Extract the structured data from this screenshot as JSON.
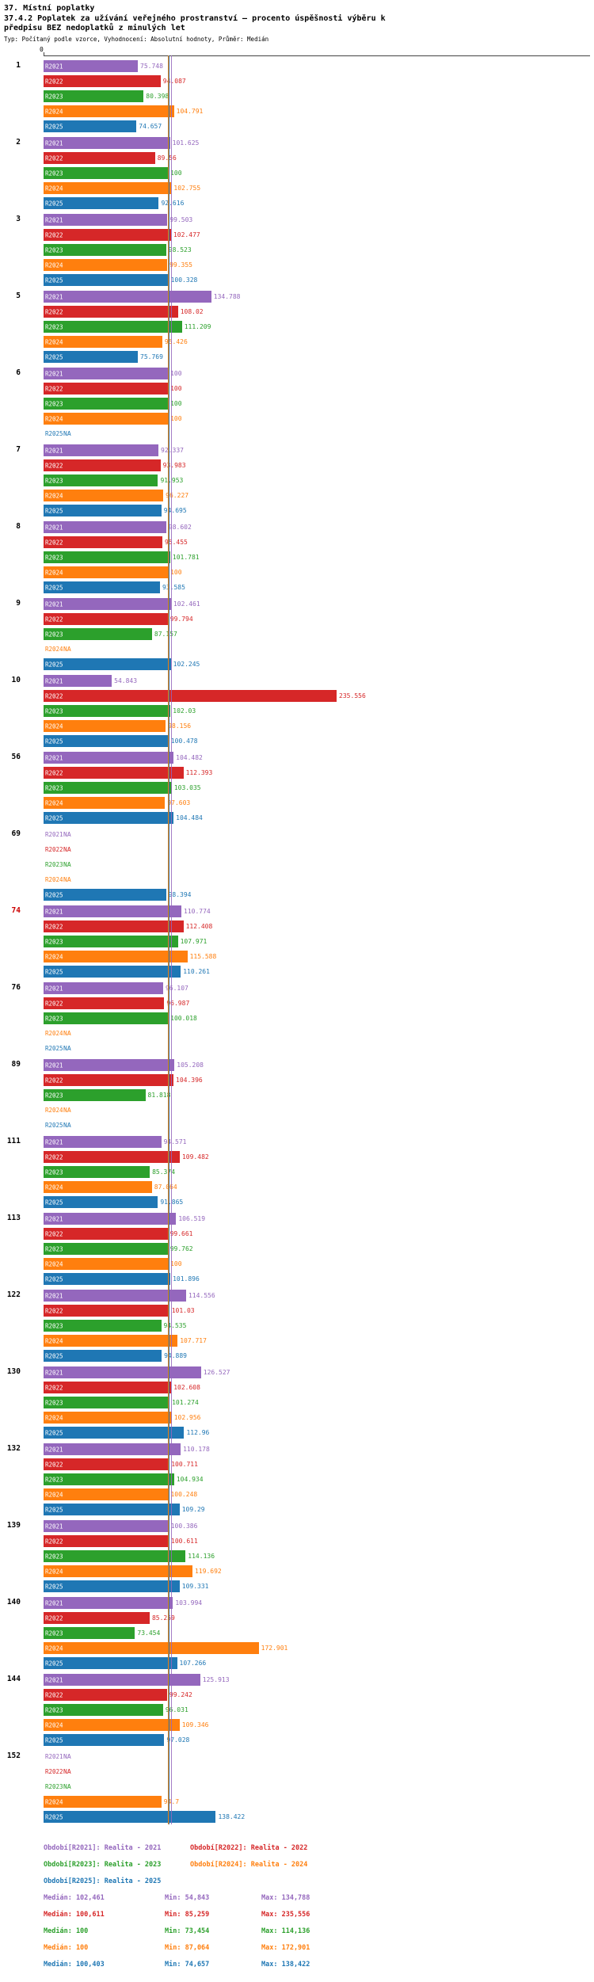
{
  "colors": {
    "R2021": "#9467bd",
    "R2022": "#d62728",
    "R2023": "#2ca02c",
    "R2024": "#ff7f0e",
    "R2025": "#1f77b4"
  },
  "chart_data": {
    "type": "bar",
    "orientation": "horizontal",
    "title": "37. Místní poplatky",
    "subtitle": "37.4.2 Poplatek za užívání veřejného prostranství – procento úspěšnosti výběru k předpisu BEZ nedoplatků z minulých let",
    "meta": "Typ: Počítaný podle vzorce, Vyhodnocení: Absolutní hodnoty, Průměr: Medián",
    "axis_zero": "0",
    "x_range": [
      0,
      240
    ],
    "na_text": "NA",
    "series_names": [
      "R2021",
      "R2022",
      "R2023",
      "R2024",
      "R2025"
    ],
    "groups": [
      {
        "label": "1",
        "values": [
          75.748,
          94.087,
          80.398,
          104.791,
          74.657
        ]
      },
      {
        "label": "2",
        "values": [
          101.625,
          89.56,
          100,
          102.755,
          92.616
        ]
      },
      {
        "label": "3",
        "values": [
          99.503,
          102.477,
          98.523,
          99.355,
          100.328
        ]
      },
      {
        "label": "5",
        "values": [
          134.788,
          108.02,
          111.209,
          95.426,
          75.769
        ]
      },
      {
        "label": "6",
        "values": [
          100,
          100,
          100,
          100,
          null
        ]
      },
      {
        "label": "7",
        "values": [
          92.337,
          93.983,
          91.953,
          96.227,
          94.695
        ]
      },
      {
        "label": "8",
        "values": [
          98.602,
          95.455,
          101.781,
          100,
          93.585
        ]
      },
      {
        "label": "9",
        "values": [
          102.461,
          99.794,
          87.157,
          null,
          102.245
        ]
      },
      {
        "label": "10",
        "values": [
          54.843,
          235.556,
          102.03,
          98.156,
          100.478
        ]
      },
      {
        "label": "56",
        "values": [
          104.482,
          112.393,
          103.035,
          97.603,
          104.484
        ]
      },
      {
        "label": "69",
        "values": [
          null,
          null,
          null,
          null,
          98.394
        ]
      },
      {
        "label": "74",
        "values": [
          110.774,
          112.408,
          107.971,
          115.588,
          110.261
        ],
        "highlight": true
      },
      {
        "label": "76",
        "values": [
          96.107,
          96.987,
          100.018,
          null,
          null
        ]
      },
      {
        "label": "89",
        "values": [
          105.208,
          104.396,
          81.818,
          null,
          null
        ]
      },
      {
        "label": "111",
        "values": [
          94.571,
          109.482,
          85.374,
          87.064,
          91.865
        ]
      },
      {
        "label": "113",
        "values": [
          106.519,
          99.661,
          99.762,
          100,
          101.896
        ]
      },
      {
        "label": "122",
        "values": [
          114.556,
          101.03,
          94.535,
          107.717,
          94.889
        ]
      },
      {
        "label": "130",
        "values": [
          126.527,
          102.608,
          101.274,
          102.956,
          112.96
        ]
      },
      {
        "label": "132",
        "values": [
          110.178,
          100.711,
          104.934,
          100.248,
          109.29
        ]
      },
      {
        "label": "139",
        "values": [
          100.386,
          100.611,
          114.136,
          119.692,
          109.331
        ]
      },
      {
        "label": "140",
        "values": [
          103.994,
          85.259,
          73.454,
          172.901,
          107.266
        ]
      },
      {
        "label": "144",
        "values": [
          125.913,
          99.242,
          96.031,
          109.346,
          97.028
        ]
      },
      {
        "label": "152",
        "values": [
          null,
          null,
          null,
          94.7,
          138.422
        ]
      }
    ],
    "medians": [
      102.461,
      100.611,
      100,
      100,
      100.403
    ],
    "legend": [
      {
        "series": "R2021",
        "label": "Období[R2021]: Realita - 2021"
      },
      {
        "series": "R2022",
        "label": "Období[R2022]: Realita - 2022"
      },
      {
        "series": "R2023",
        "label": "Období[R2023]: Realita - 2023"
      },
      {
        "series": "R2024",
        "label": "Období[R2024]: Realita - 2024"
      },
      {
        "series": "R2025",
        "label": "Období[R2025]: Realita - 2025"
      }
    ],
    "stats": [
      {
        "series": "R2021",
        "median": "Medián: 102,461",
        "min": "Min: 54,843",
        "max": "Max: 134,788"
      },
      {
        "series": "R2022",
        "median": "Medián: 100,611",
        "min": "Min: 85,259",
        "max": "Max: 235,556"
      },
      {
        "series": "R2023",
        "median": "Medián: 100",
        "min": "Min: 73,454",
        "max": "Max: 114,136"
      },
      {
        "series": "R2024",
        "median": "Medián: 100",
        "min": "Min: 87,064",
        "max": "Max: 172,901"
      },
      {
        "series": "R2025",
        "median": "Medián: 100,403",
        "min": "Min: 74,657",
        "max": "Max: 138,422"
      }
    ]
  }
}
